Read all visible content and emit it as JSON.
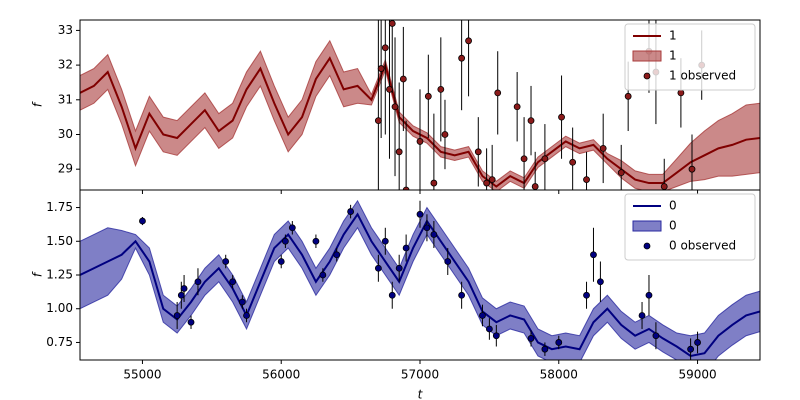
{
  "chart_data": [
    {
      "type": "line",
      "ylabel": "f",
      "legend": "upper right",
      "xlim": [
        54550,
        59450
      ],
      "ylim": [
        28.4,
        33.3
      ],
      "yticks": [
        29,
        30,
        31,
        32,
        33
      ],
      "x": [
        54550,
        54650,
        54750,
        54850,
        54950,
        55050,
        55150,
        55250,
        55350,
        55450,
        55550,
        55650,
        55750,
        55850,
        55950,
        56050,
        56150,
        56250,
        56350,
        56450,
        56550,
        56650,
        56750,
        56850,
        56950,
        57050,
        57150,
        57250,
        57350,
        57450,
        57550,
        57650,
        57750,
        57850,
        57950,
        58050,
        58150,
        58250,
        58350,
        58450,
        58550,
        58650,
        58750,
        58850,
        58950,
        59050,
        59150,
        59250,
        59350,
        59450
      ],
      "series": [
        {
          "name": "1",
          "color": "#800000",
          "values": [
            31.2,
            31.4,
            31.8,
            30.8,
            29.6,
            30.6,
            30.0,
            29.9,
            30.3,
            30.7,
            30.1,
            30.4,
            31.3,
            31.9,
            30.9,
            30.0,
            30.5,
            31.6,
            32.2,
            31.3,
            31.4,
            31.0,
            32.0,
            30.5,
            30.1,
            29.9,
            29.5,
            29.4,
            29.5,
            28.8,
            28.5,
            28.8,
            28.6,
            29.2,
            29.5,
            29.8,
            29.6,
            29.7,
            29.3,
            29.0,
            28.7,
            28.6,
            28.6,
            28.9,
            29.2,
            29.4,
            29.6,
            29.7,
            29.85,
            29.9
          ]
        }
      ],
      "band": {
        "name": "1",
        "color": "#a83a3a",
        "lower": [
          30.7,
          30.9,
          31.3,
          30.3,
          29.1,
          30.1,
          29.5,
          29.4,
          29.8,
          30.2,
          29.6,
          29.9,
          30.8,
          31.4,
          30.4,
          29.5,
          30.0,
          31.1,
          31.7,
          30.8,
          30.9,
          30.85,
          31.85,
          30.35,
          29.95,
          29.75,
          29.35,
          29.25,
          29.35,
          28.65,
          28.35,
          28.65,
          28.45,
          29.05,
          29.35,
          29.65,
          29.45,
          29.55,
          29.15,
          28.75,
          28.45,
          28.35,
          28.35,
          28.5,
          28.65,
          28.7,
          28.8,
          28.8,
          28.85,
          28.9
        ],
        "upper": [
          31.7,
          31.9,
          32.3,
          31.3,
          30.1,
          31.1,
          30.5,
          30.4,
          30.8,
          31.2,
          30.6,
          30.9,
          31.8,
          32.4,
          31.4,
          30.5,
          31.0,
          32.1,
          32.7,
          31.8,
          31.9,
          31.15,
          32.15,
          30.65,
          30.25,
          30.05,
          29.65,
          29.55,
          29.65,
          28.95,
          28.65,
          28.95,
          28.75,
          29.35,
          29.65,
          29.95,
          29.75,
          29.85,
          29.45,
          29.25,
          28.95,
          28.85,
          28.85,
          29.3,
          29.75,
          30.1,
          30.4,
          30.6,
          30.85,
          30.9
        ]
      },
      "observed": {
        "name": "1 observed",
        "color": "#8b1a1a",
        "x": [
          56700,
          56720,
          56750,
          56780,
          56800,
          56820,
          56850,
          56880,
          56900,
          57000,
          57060,
          57100,
          57150,
          57180,
          57300,
          57350,
          57420,
          57480,
          57520,
          57560,
          57700,
          57750,
          57800,
          57830,
          57900,
          58020,
          58100,
          58200,
          58320,
          58450,
          58500,
          58650,
          58700,
          58760,
          58880,
          58960,
          59030
        ],
        "values": [
          30.4,
          31.9,
          32.5,
          31.3,
          33.2,
          30.8,
          29.5,
          31.6,
          28.4,
          29.8,
          31.1,
          28.6,
          31.3,
          30.0,
          32.2,
          32.7,
          29.5,
          28.6,
          28.7,
          31.2,
          30.8,
          29.3,
          30.4,
          28.5,
          29.3,
          30.5,
          29.2,
          28.7,
          29.6,
          28.9,
          31.1,
          32.4,
          31.8,
          28.5,
          31.2,
          29.0,
          32.0
        ],
        "errors": [
          3,
          2,
          2.5,
          2,
          2,
          2,
          2,
          1.5,
          2,
          1.5,
          1.2,
          2,
          1.5,
          1,
          1.5,
          1.6,
          1,
          1,
          1,
          1.2,
          1,
          1.2,
          1,
          1,
          1,
          1.2,
          1,
          0.8,
          1,
          0.8,
          1,
          1.2,
          1.5,
          0.8,
          1,
          1,
          1
        ]
      }
    },
    {
      "type": "line",
      "ylabel": "f",
      "xlabel": "t",
      "legend": "upper right",
      "xlim": [
        54550,
        59450
      ],
      "xticks": [
        55000,
        56000,
        57000,
        58000,
        59000
      ],
      "ylim": [
        0.62,
        1.88
      ],
      "yticks": [
        0.75,
        {
          "value": 1,
          "label": "1.00"
        },
        1.25,
        {
          "value": 1.5,
          "label": "1.50"
        },
        1.75
      ],
      "x": [
        54550,
        54650,
        54750,
        54850,
        54950,
        55050,
        55150,
        55250,
        55350,
        55450,
        55550,
        55650,
        55750,
        55850,
        55950,
        56050,
        56150,
        56250,
        56350,
        56450,
        56550,
        56650,
        56750,
        56850,
        56950,
        57050,
        57150,
        57250,
        57350,
        57450,
        57550,
        57650,
        57750,
        57850,
        57950,
        58050,
        58150,
        58250,
        58350,
        58450,
        58550,
        58650,
        58750,
        58850,
        58950,
        59050,
        59150,
        59250,
        59350,
        59450
      ],
      "series": [
        {
          "name": "0",
          "color": "#000080",
          "values": [
            1.25,
            1.3,
            1.35,
            1.4,
            1.5,
            1.35,
            1.0,
            0.92,
            1.05,
            1.2,
            1.3,
            1.15,
            0.95,
            1.2,
            1.45,
            1.55,
            1.4,
            1.2,
            1.35,
            1.55,
            1.7,
            1.5,
            1.35,
            1.2,
            1.45,
            1.65,
            1.5,
            1.35,
            1.2,
            0.98,
            0.9,
            0.95,
            0.92,
            0.75,
            0.7,
            0.72,
            0.7,
            0.9,
            1.0,
            0.88,
            0.8,
            0.85,
            0.78,
            0.72,
            0.65,
            0.67,
            0.8,
            0.88,
            0.95,
            0.98
          ]
        }
      ],
      "band": {
        "name": "0",
        "color": "#2a2aa0",
        "lower": [
          1.0,
          1.05,
          1.1,
          1.22,
          1.45,
          1.25,
          0.9,
          0.82,
          0.95,
          1.1,
          1.2,
          1.05,
          0.85,
          1.1,
          1.35,
          1.45,
          1.3,
          1.1,
          1.25,
          1.45,
          1.6,
          1.4,
          1.25,
          1.1,
          1.35,
          1.55,
          1.4,
          1.25,
          1.1,
          0.88,
          0.8,
          0.85,
          0.82,
          0.65,
          0.6,
          0.62,
          0.6,
          0.8,
          0.9,
          0.78,
          0.7,
          0.75,
          0.68,
          0.62,
          0.5,
          0.52,
          0.65,
          0.73,
          0.8,
          0.83
        ],
        "upper": [
          1.5,
          1.55,
          1.6,
          1.58,
          1.55,
          1.45,
          1.1,
          1.02,
          1.15,
          1.3,
          1.4,
          1.25,
          1.05,
          1.3,
          1.55,
          1.65,
          1.5,
          1.3,
          1.45,
          1.65,
          1.8,
          1.6,
          1.45,
          1.3,
          1.55,
          1.75,
          1.6,
          1.45,
          1.3,
          1.08,
          1.0,
          1.05,
          1.02,
          0.85,
          0.8,
          0.82,
          0.8,
          1.0,
          1.1,
          0.98,
          0.9,
          0.95,
          0.88,
          0.82,
          0.8,
          0.82,
          0.95,
          1.03,
          1.1,
          1.13
        ]
      },
      "observed": {
        "name": "0 observed",
        "color": "#000080",
        "x": [
          55000,
          55250,
          55280,
          55300,
          55350,
          55400,
          55600,
          55650,
          55720,
          55750,
          56000,
          56030,
          56080,
          56250,
          56300,
          56400,
          56500,
          56700,
          56750,
          56800,
          56850,
          56900,
          57000,
          57050,
          57100,
          57200,
          57300,
          57450,
          57500,
          57550,
          57800,
          57900,
          58000,
          58200,
          58250,
          58300,
          58600,
          58650,
          58700,
          58950,
          59000
        ],
        "values": [
          1.65,
          0.95,
          1.1,
          1.15,
          0.9,
          1.2,
          1.35,
          1.2,
          1.05,
          0.95,
          1.35,
          1.5,
          1.6,
          1.5,
          1.25,
          1.4,
          1.72,
          1.3,
          1.5,
          1.1,
          1.3,
          1.45,
          1.7,
          1.6,
          1.55,
          1.35,
          1.1,
          0.95,
          0.85,
          0.8,
          0.78,
          0.7,
          0.75,
          1.1,
          1.4,
          1.2,
          0.95,
          1.1,
          0.8,
          0.7,
          0.75
        ],
        "errors": [
          0.03,
          0.1,
          0.1,
          0.1,
          0.05,
          0.1,
          0.05,
          0.05,
          0.05,
          0.05,
          0.05,
          0.05,
          0.05,
          0.05,
          0.05,
          0.05,
          0.05,
          0.1,
          0.1,
          0.1,
          0.1,
          0.1,
          0.1,
          0.1,
          0.1,
          0.1,
          0.1,
          0.08,
          0.08,
          0.08,
          0.06,
          0.05,
          0.05,
          0.1,
          0.2,
          0.15,
          0.1,
          0.15,
          0.1,
          0.08,
          0.08
        ]
      }
    }
  ]
}
